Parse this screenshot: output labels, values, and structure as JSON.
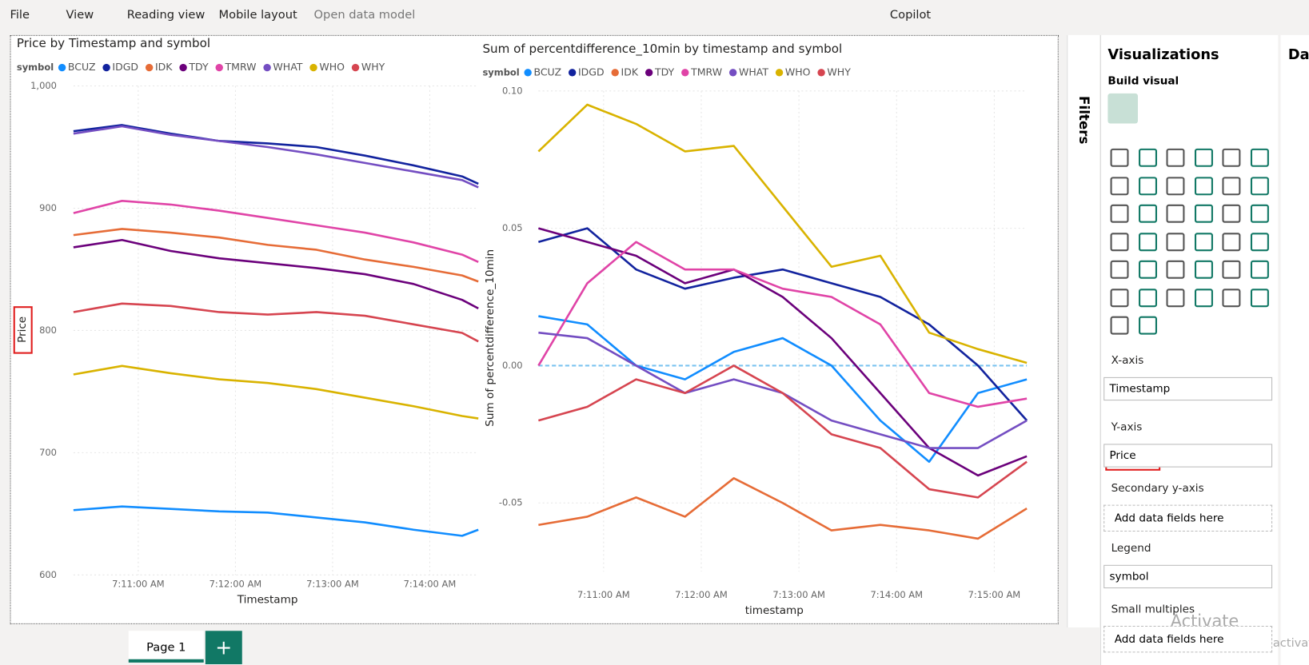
{
  "ui": {
    "menu": [
      "File",
      "View",
      "Reading view",
      "Mobile layout",
      "Open data model"
    ],
    "copilot": "Copilot",
    "filters": "Filters",
    "pane_title": "Visualizations",
    "build_visual": "Build visual",
    "data_tab": "Da",
    "wells": [
      {
        "label": "X-axis",
        "field": "Timestamp"
      },
      {
        "label": "Y-axis",
        "field": "Price"
      },
      {
        "label": "Secondary y-axis",
        "placeholder": "Add data fields here"
      },
      {
        "label": "Legend",
        "field": "symbol"
      },
      {
        "label": "Small multiples",
        "placeholder": "Add data fields here"
      }
    ],
    "page_tab": "Page 1",
    "watermark": [
      "Activate Windows",
      "Go to Settings to activate"
    ]
  },
  "chart_data": [
    {
      "type": "line",
      "title": "Price by Timestamp and symbol",
      "legend_title": "symbol",
      "x_label": "Timestamp",
      "y_label": "Price",
      "grid": true,
      "x": [
        "7:10:20 AM",
        "7:10:50 AM",
        "7:11:20 AM",
        "7:11:50 AM",
        "7:12:20 AM",
        "7:12:50 AM",
        "7:13:20 AM",
        "7:13:50 AM",
        "7:14:20 AM",
        "7:14:30 AM"
      ],
      "xlim": [
        "7:10:20 AM",
        "7:14:30 AM"
      ],
      "xticks": [
        "7:11:00 AM",
        "7:12:00 AM",
        "7:13:00 AM",
        "7:14:00 AM"
      ],
      "ylim": [
        600,
        1000
      ],
      "yticks": [
        600,
        700,
        800,
        900,
        {
          "value": 1000,
          "label": "1,000"
        }
      ],
      "series": [
        {
          "name": "BCUZ",
          "color": "#118dff",
          "values": [
            653,
            656,
            654,
            652,
            651,
            647,
            643,
            637,
            632,
            637
          ]
        },
        {
          "name": "IDGD",
          "color": "#12239e",
          "values": [
            963,
            968,
            961,
            955,
            953,
            950,
            943,
            935,
            926,
            920
          ]
        },
        {
          "name": "IDK",
          "color": "#e66c37",
          "values": [
            878,
            883,
            880,
            876,
            870,
            866,
            858,
            852,
            845,
            840
          ]
        },
        {
          "name": "TDY",
          "color": "#6b007b",
          "values": [
            868,
            874,
            865,
            859,
            855,
            851,
            846,
            838,
            825,
            818
          ]
        },
        {
          "name": "TMRW",
          "color": "#e044a7",
          "values": [
            896,
            906,
            903,
            898,
            892,
            886,
            880,
            872,
            862,
            856
          ]
        },
        {
          "name": "WHAT",
          "color": "#744ec2",
          "values": [
            961,
            967,
            960,
            955,
            950,
            944,
            937,
            930,
            923,
            917
          ]
        },
        {
          "name": "WHO",
          "color": "#d9b300",
          "values": [
            764,
            771,
            765,
            760,
            757,
            752,
            745,
            738,
            730,
            728
          ]
        },
        {
          "name": "WHY",
          "color": "#d64550",
          "values": [
            815,
            822,
            820,
            815,
            813,
            815,
            812,
            805,
            798,
            791
          ]
        }
      ]
    },
    {
      "type": "line",
      "title": "Sum of percentdifference_10min by timestamp and symbol",
      "legend_title": "symbol",
      "x_label": "timestamp",
      "y_label": "Sum of percentdifference_10min",
      "grid": true,
      "x": [
        "7:10:20 AM",
        "7:10:50 AM",
        "7:11:20 AM",
        "7:11:50 AM",
        "7:12:20 AM",
        "7:12:50 AM",
        "7:13:20 AM",
        "7:13:50 AM",
        "7:14:20 AM",
        "7:14:50 AM",
        "7:15:20 AM"
      ],
      "xlim": [
        "7:10:20 AM",
        "7:15:20 AM"
      ],
      "xticks": [
        "7:11:00 AM",
        "7:12:00 AM",
        "7:13:00 AM",
        "7:14:00 AM",
        "7:15:00 AM"
      ],
      "ylim": [
        -0.075,
        0.1
      ],
      "yticks": [
        {
          "value": -0.05,
          "label": "-0.05"
        },
        {
          "value": 0,
          "label": "0.00"
        },
        {
          "value": 0.05,
          "label": "0.05"
        },
        {
          "value": 0.1,
          "label": "0.10"
        }
      ],
      "series": [
        {
          "name": "BCUZ",
          "color": "#118dff",
          "values": [
            0.018,
            0.015,
            0,
            -0.005,
            0.005,
            0.01,
            0,
            -0.02,
            -0.035,
            -0.01,
            -0.005
          ]
        },
        {
          "name": "IDGD",
          "color": "#12239e",
          "values": [
            0.045,
            0.05,
            0.035,
            0.028,
            0.032,
            0.035,
            0.03,
            0.025,
            0.015,
            0,
            -0.02
          ]
        },
        {
          "name": "IDK",
          "color": "#e66c37",
          "values": [
            -0.058,
            -0.055,
            -0.048,
            -0.055,
            -0.041,
            -0.05,
            -0.06,
            -0.058,
            -0.06,
            -0.063,
            -0.052
          ]
        },
        {
          "name": "TDY",
          "color": "#6b007b",
          "values": [
            0.05,
            0.045,
            0.04,
            0.03,
            0.035,
            0.025,
            0.01,
            -0.01,
            -0.03,
            -0.04,
            -0.033
          ]
        },
        {
          "name": "TMRW",
          "color": "#e044a7",
          "values": [
            0,
            0.03,
            0.045,
            0.035,
            0.035,
            0.028,
            0.025,
            0.015,
            -0.01,
            -0.015,
            -0.012
          ]
        },
        {
          "name": "WHAT",
          "color": "#744ec2",
          "values": [
            0.012,
            0.01,
            0,
            -0.01,
            -0.005,
            -0.01,
            -0.02,
            -0.025,
            -0.03,
            -0.03,
            -0.02
          ]
        },
        {
          "name": "WHO",
          "color": "#d9b300",
          "values": [
            0.078,
            0.095,
            0.088,
            0.078,
            0.08,
            0.058,
            0.036,
            0.04,
            0.012,
            0.006,
            0.001
          ]
        },
        {
          "name": "WHY",
          "color": "#d64550",
          "values": [
            -0.02,
            -0.015,
            -0.005,
            -0.01,
            0,
            -0.01,
            -0.025,
            -0.03,
            -0.045,
            -0.048,
            -0.035
          ]
        }
      ]
    }
  ]
}
